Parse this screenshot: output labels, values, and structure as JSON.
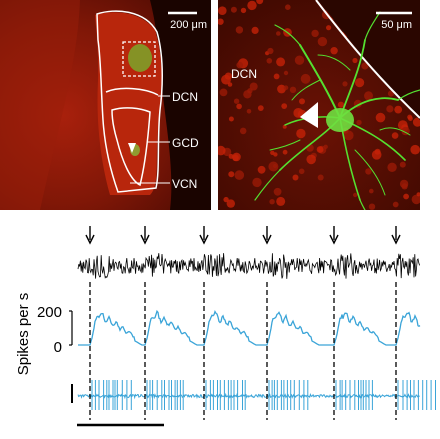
{
  "panel_left": {
    "scale_label": "200 μm",
    "region_labels": {
      "dcn": "DCN",
      "gcd": "GCD",
      "vcn": "VCN"
    }
  },
  "panel_right": {
    "scale_label": "50 μm",
    "region_label": "DCN"
  },
  "trace_panel": {
    "ylabel": "Spikes per s",
    "rate_ticks": [
      "200",
      "0"
    ],
    "burst_count": 6
  },
  "colors": {
    "tissue_dark": "#3a0800",
    "tissue_red": "#c42208",
    "neuron_green": "#55e030",
    "rate_trace": "#3aa4d8",
    "spike_trace": "#3aa4d8",
    "outline": "#ffffff",
    "raw_trace": "#000000"
  },
  "icons": [
    "arrowhead-icon",
    "down-arrow-icon"
  ]
}
